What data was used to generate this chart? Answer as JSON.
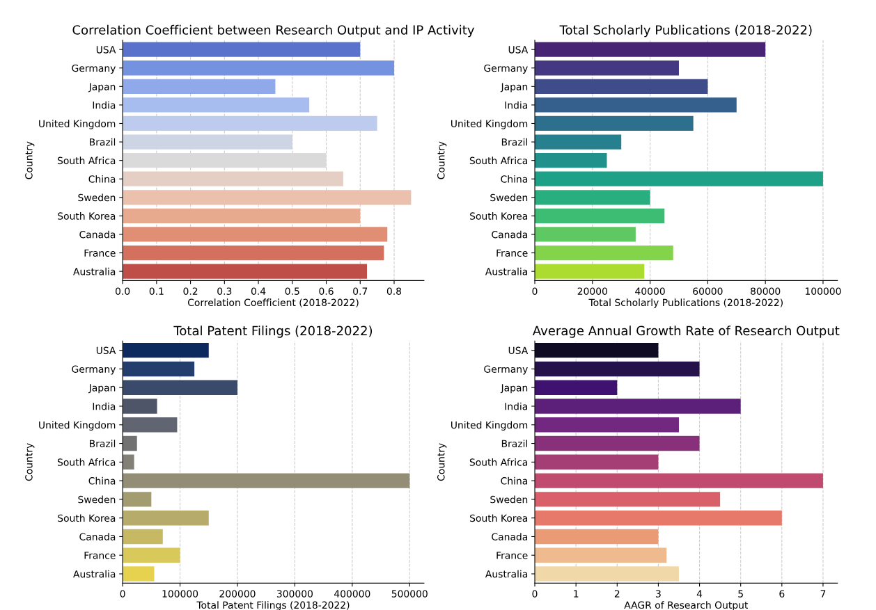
{
  "chart_data": [
    {
      "type": "bar",
      "orientation": "horizontal",
      "title": "Correlation Coefficient between Research Output and IP Activity",
      "xlabel": "Correlation Coefficient (2018-2022)",
      "ylabel": "Country",
      "grid": "x",
      "categories": [
        "USA",
        "Germany",
        "Japan",
        "India",
        "United Kingdom",
        "Brazil",
        "South Africa",
        "China",
        "Sweden",
        "South Korea",
        "Canada",
        "France",
        "Australia"
      ],
      "values": [
        0.7,
        0.8,
        0.45,
        0.55,
        0.75,
        0.5,
        0.6,
        0.65,
        0.85,
        0.7,
        0.78,
        0.77,
        0.72
      ],
      "colors": [
        "#5b72cc",
        "#7592e0",
        "#8fa9ea",
        "#a7bdf0",
        "#bccbee",
        "#cdd5e4",
        "#dadada",
        "#e5cfc4",
        "#ebc0ac",
        "#e8aa8f",
        "#e08f74",
        "#d4705e",
        "#bf4e48"
      ],
      "xlim": [
        0,
        0.888
      ],
      "xticks": [
        {
          "value": 0,
          "label": "0.0"
        },
        {
          "value": 0.1,
          "label": "0.1"
        },
        {
          "value": 0.2,
          "label": "0.2"
        },
        {
          "value": 0.3,
          "label": "0.3"
        },
        {
          "value": 0.4,
          "label": "0.4"
        },
        {
          "value": 0.5,
          "label": "0.5"
        },
        {
          "value": 0.6,
          "label": "0.6"
        },
        {
          "value": 0.7,
          "label": "0.7"
        },
        {
          "value": 0.8,
          "label": "0.8"
        }
      ]
    },
    {
      "type": "bar",
      "orientation": "horizontal",
      "title": "Total Scholarly Publications (2018-2022)",
      "xlabel": "Total Scholarly Publications (2018-2022)",
      "ylabel": "Country",
      "grid": "x",
      "categories": [
        "USA",
        "Germany",
        "Japan",
        "India",
        "United Kingdom",
        "Brazil",
        "South Africa",
        "China",
        "Sweden",
        "South Korea",
        "Canada",
        "France",
        "Australia"
      ],
      "values": [
        80000,
        50000,
        60000,
        70000,
        55000,
        30000,
        25000,
        100000,
        40000,
        45000,
        35000,
        48000,
        38000
      ],
      "colors": [
        "#482475",
        "#453882",
        "#3e4c8a",
        "#355f8d",
        "#2d708e",
        "#27808e",
        "#21918c",
        "#1fa188",
        "#29af7f",
        "#3dbc74",
        "#5ec962",
        "#84d44b",
        "#addc30"
      ],
      "xlim": [
        0,
        105000
      ],
      "xticks": [
        0,
        20000,
        40000,
        60000,
        80000,
        100000
      ]
    },
    {
      "type": "bar",
      "orientation": "horizontal",
      "title": "Total Patent Filings (2018-2022)",
      "xlabel": "Total Patent Filings (2018-2022)",
      "ylabel": "Country",
      "grid": "x",
      "categories": [
        "USA",
        "Germany",
        "Japan",
        "India",
        "United Kingdom",
        "Brazil",
        "South Africa",
        "China",
        "Sweden",
        "South Korea",
        "Canada",
        "France",
        "Australia"
      ],
      "values": [
        150000,
        125000,
        200000,
        60000,
        95000,
        25000,
        20000,
        500000,
        50000,
        150000,
        70000,
        100000,
        55000
      ],
      "colors": [
        "#0d2a5e",
        "#233d6c",
        "#3a4a6b",
        "#4f5569",
        "#616471",
        "#727273",
        "#838078",
        "#948d76",
        "#a49c71",
        "#b6ab6b",
        "#c7b964",
        "#d9c85a",
        "#e6d24f"
      ],
      "xlim": [
        0,
        525000
      ],
      "xticks": [
        0,
        100000,
        200000,
        300000,
        400000,
        500000
      ]
    },
    {
      "type": "bar",
      "orientation": "horizontal",
      "title": "Average Annual Growth Rate of Research Output",
      "xlabel": "AAGR of Research Output",
      "ylabel": "Country",
      "grid": "x",
      "categories": [
        "USA",
        "Germany",
        "Japan",
        "India",
        "United Kingdom",
        "Brazil",
        "South Africa",
        "China",
        "Sweden",
        "South Korea",
        "Canada",
        "France",
        "Australia"
      ],
      "values": [
        3.0,
        4.0,
        2.0,
        5.0,
        3.5,
        4.0,
        3.0,
        7.0,
        4.5,
        6.0,
        3.0,
        3.2,
        3.5
      ],
      "colors": [
        "#0e0b22",
        "#26124a",
        "#3f1272",
        "#5c1f7a",
        "#722780",
        "#89307b",
        "#a43e74",
        "#c04b6e",
        "#d9606a",
        "#e6796a",
        "#eb9a76",
        "#efbb8e",
        "#f0d8a8"
      ],
      "xlim": [
        0,
        7.35
      ],
      "xticks": [
        0,
        1,
        2,
        3,
        4,
        5,
        6,
        7
      ]
    }
  ]
}
